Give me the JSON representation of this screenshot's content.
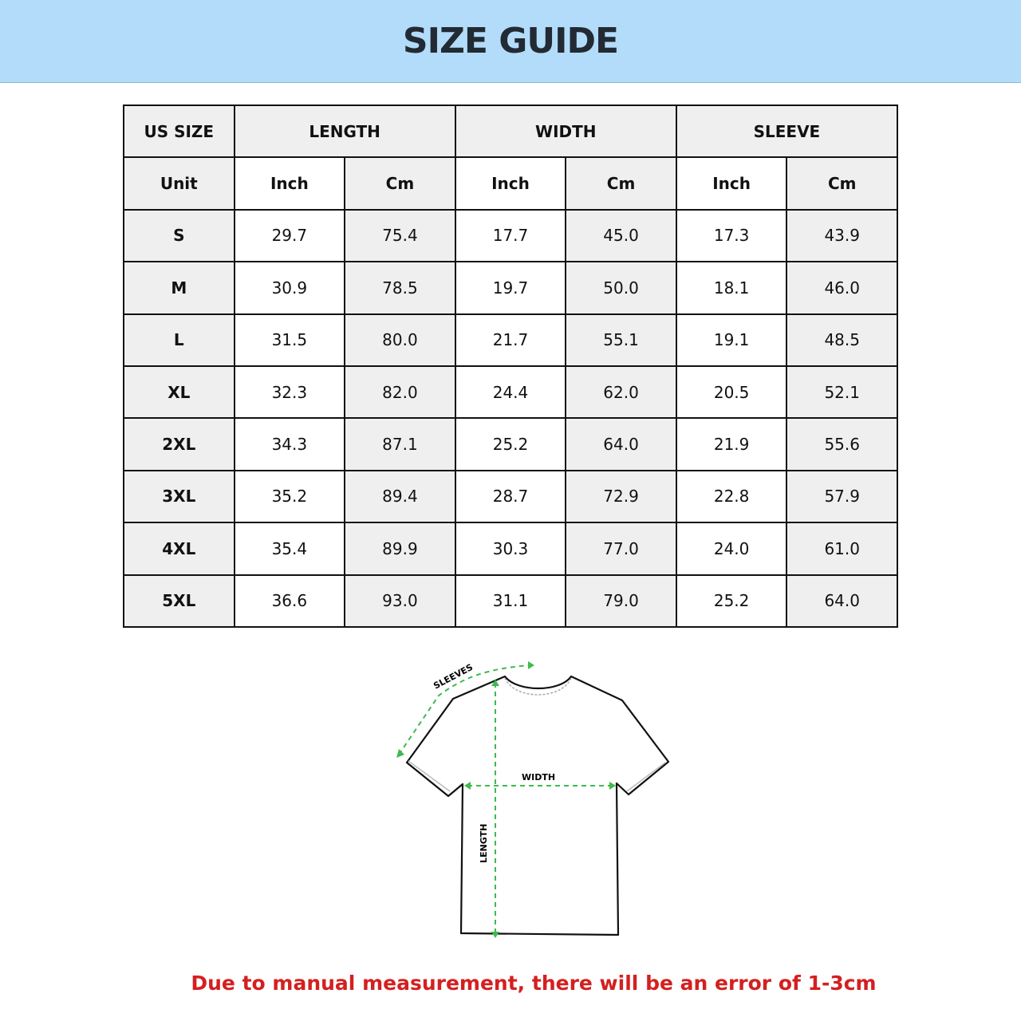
{
  "title": "SIZE GUIDE",
  "table": {
    "group_headers": [
      "US SIZE",
      "LENGTH",
      "WIDTH",
      "SLEEVE"
    ],
    "unit_row": [
      "Unit",
      "Inch",
      "Cm",
      "Inch",
      "Cm",
      "Inch",
      "Cm"
    ],
    "rows": [
      [
        "S",
        "29.7",
        "75.4",
        "17.7",
        "45.0",
        "17.3",
        "43.9"
      ],
      [
        "M",
        "30.9",
        "78.5",
        "19.7",
        "50.0",
        "18.1",
        "46.0"
      ],
      [
        "L",
        "31.5",
        "80.0",
        "21.7",
        "55.1",
        "19.1",
        "48.5"
      ],
      [
        "XL",
        "32.3",
        "82.0",
        "24.4",
        "62.0",
        "20.5",
        "52.1"
      ],
      [
        "2XL",
        "34.3",
        "87.1",
        "25.2",
        "64.0",
        "21.9",
        "55.6"
      ],
      [
        "3XL",
        "35.2",
        "89.4",
        "28.7",
        "72.9",
        "22.8",
        "57.9"
      ],
      [
        "4XL",
        "35.4",
        "89.9",
        "30.3",
        "77.0",
        "24.0",
        "61.0"
      ],
      [
        "5XL",
        "36.6",
        "93.0",
        "31.1",
        "79.0",
        "25.2",
        "64.0"
      ]
    ]
  },
  "diagram": {
    "sleeves_label": "SLEEVES",
    "width_label": "WIDTH",
    "length_label": "LENGTH",
    "arrow_color": "#3dbb4f"
  },
  "note": "Due to manual measurement, there will be an error of 1-3cm",
  "colors": {
    "banner": "#b3dcfa",
    "note": "#d42020",
    "cell_shade": "#efefef"
  }
}
